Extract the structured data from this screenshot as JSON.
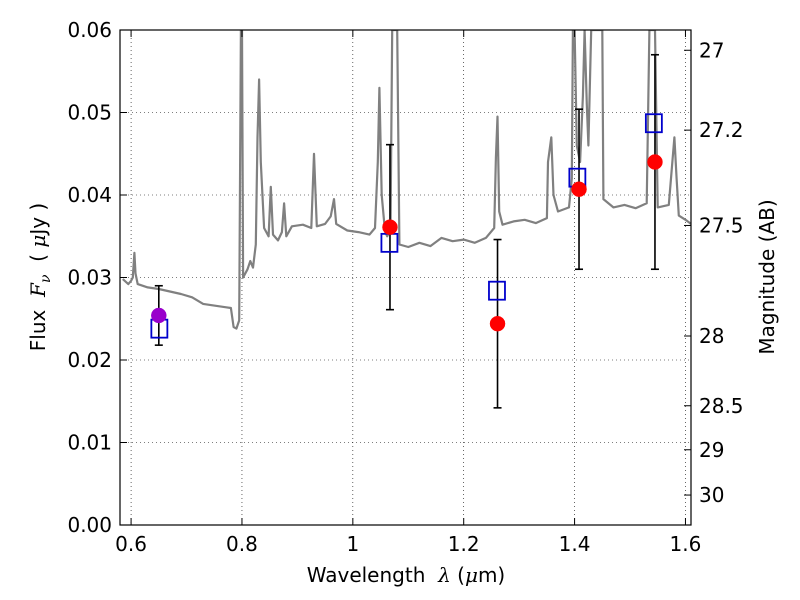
{
  "chart_data": {
    "type": "scatter",
    "xlabel": {
      "prefix": "Wavelength  ",
      "symbol": "λ",
      "paren_open": " (",
      "unit_sym": "μ",
      "unit_rest": "m)"
    },
    "ylabel": {
      "prefix": "Flux  ",
      "symbol": "F",
      "sub": "ν",
      "unit_open": "  ( ",
      "unit_sym": "μ",
      "unit_rest": "Jy )"
    },
    "y2label": "Magnitude (AB)",
    "xlim": [
      0.58,
      1.61
    ],
    "ylim": [
      0.0,
      0.06
    ],
    "x_ticks": [
      {
        "value": 0.6,
        "label": "0.6"
      },
      {
        "value": 0.8,
        "label": "0.8"
      },
      {
        "value": 1.0,
        "label": "1"
      },
      {
        "value": 1.2,
        "label": "1.2"
      },
      {
        "value": 1.4,
        "label": "1.4"
      },
      {
        "value": 1.6,
        "label": "1.6"
      }
    ],
    "y_ticks": [
      {
        "value": 0.0,
        "label": "0.00"
      },
      {
        "value": 0.01,
        "label": "0.01"
      },
      {
        "value": 0.02,
        "label": "0.02"
      },
      {
        "value": 0.03,
        "label": "0.03"
      },
      {
        "value": 0.04,
        "label": "0.04"
      },
      {
        "value": 0.05,
        "label": "0.05"
      },
      {
        "value": 0.06,
        "label": "0.06"
      }
    ],
    "y2_ticks": [
      {
        "value": 27.0,
        "label": "27"
      },
      {
        "value": 27.2,
        "label": "27.2"
      },
      {
        "value": 27.5,
        "label": "27.5"
      },
      {
        "value": 28.0,
        "label": "28"
      },
      {
        "value": 28.5,
        "label": "28.5"
      },
      {
        "value": 29.0,
        "label": "29"
      },
      {
        "value": 30.0,
        "label": "30"
      }
    ],
    "grid": true,
    "colors": {
      "spectrum": "#808080",
      "observed": "#ff0000",
      "observed_first": "#9900cc",
      "model": "#0000cc",
      "errorbar": "#000000"
    },
    "spectrum": [
      [
        0.585,
        0.0298
      ],
      [
        0.595,
        0.0292
      ],
      [
        0.6,
        0.0296
      ],
      [
        0.603,
        0.03
      ],
      [
        0.606,
        0.033
      ],
      [
        0.608,
        0.0305
      ],
      [
        0.612,
        0.0292
      ],
      [
        0.63,
        0.0288
      ],
      [
        0.65,
        0.0286
      ],
      [
        0.67,
        0.0283
      ],
      [
        0.69,
        0.028
      ],
      [
        0.71,
        0.0276
      ],
      [
        0.73,
        0.0268
      ],
      [
        0.75,
        0.0266
      ],
      [
        0.77,
        0.0264
      ],
      [
        0.78,
        0.0263
      ],
      [
        0.785,
        0.024
      ],
      [
        0.79,
        0.0238
      ],
      [
        0.795,
        0.0248
      ],
      [
        0.798,
        0.06
      ],
      [
        0.8,
        0.06
      ],
      [
        0.802,
        0.03
      ],
      [
        0.81,
        0.031
      ],
      [
        0.815,
        0.032
      ],
      [
        0.82,
        0.0312
      ],
      [
        0.825,
        0.034
      ],
      [
        0.828,
        0.047
      ],
      [
        0.831,
        0.054
      ],
      [
        0.834,
        0.044
      ],
      [
        0.84,
        0.036
      ],
      [
        0.848,
        0.035
      ],
      [
        0.852,
        0.041
      ],
      [
        0.856,
        0.0352
      ],
      [
        0.865,
        0.0345
      ],
      [
        0.872,
        0.0355
      ],
      [
        0.876,
        0.039
      ],
      [
        0.88,
        0.035
      ],
      [
        0.89,
        0.0362
      ],
      [
        0.91,
        0.0364
      ],
      [
        0.925,
        0.036
      ],
      [
        0.93,
        0.045
      ],
      [
        0.935,
        0.0362
      ],
      [
        0.95,
        0.0365
      ],
      [
        0.96,
        0.0374
      ],
      [
        0.966,
        0.0395
      ],
      [
        0.97,
        0.0365
      ],
      [
        0.99,
        0.0357
      ],
      [
        1.01,
        0.0355
      ],
      [
        1.03,
        0.0352
      ],
      [
        1.04,
        0.036
      ],
      [
        1.045,
        0.044
      ],
      [
        1.048,
        0.053
      ],
      [
        1.052,
        0.04
      ],
      [
        1.058,
        0.0356
      ],
      [
        1.062,
        0.035
      ],
      [
        1.068,
        0.0358
      ],
      [
        1.071,
        0.06
      ],
      [
        1.08,
        0.06
      ],
      [
        1.084,
        0.034
      ],
      [
        1.1,
        0.0337
      ],
      [
        1.12,
        0.0342
      ],
      [
        1.14,
        0.0338
      ],
      [
        1.16,
        0.0348
      ],
      [
        1.18,
        0.0344
      ],
      [
        1.2,
        0.0346
      ],
      [
        1.22,
        0.0342
      ],
      [
        1.24,
        0.0348
      ],
      [
        1.255,
        0.036
      ],
      [
        1.258,
        0.0445
      ],
      [
        1.261,
        0.0495
      ],
      [
        1.264,
        0.038
      ],
      [
        1.27,
        0.0364
      ],
      [
        1.29,
        0.0368
      ],
      [
        1.31,
        0.037
      ],
      [
        1.33,
        0.0366
      ],
      [
        1.35,
        0.0372
      ],
      [
        1.352,
        0.044
      ],
      [
        1.358,
        0.047
      ],
      [
        1.362,
        0.04
      ],
      [
        1.37,
        0.038
      ],
      [
        1.39,
        0.0385
      ],
      [
        1.395,
        0.042
      ],
      [
        1.397,
        0.06
      ],
      [
        1.4,
        0.06
      ],
      [
        1.404,
        0.046
      ],
      [
        1.41,
        0.044
      ],
      [
        1.415,
        0.052
      ],
      [
        1.418,
        0.06
      ],
      [
        1.422,
        0.051
      ],
      [
        1.425,
        0.046
      ],
      [
        1.43,
        0.06
      ],
      [
        1.45,
        0.06
      ],
      [
        1.452,
        0.0395
      ],
      [
        1.47,
        0.0385
      ],
      [
        1.49,
        0.0388
      ],
      [
        1.51,
        0.0384
      ],
      [
        1.53,
        0.039
      ],
      [
        1.535,
        0.06
      ],
      [
        1.545,
        0.06
      ],
      [
        1.55,
        0.0385
      ],
      [
        1.57,
        0.0388
      ],
      [
        1.58,
        0.047
      ],
      [
        1.584,
        0.042
      ],
      [
        1.588,
        0.0375
      ],
      [
        1.6,
        0.037
      ],
      [
        1.61,
        0.0365
      ]
    ],
    "observed": [
      {
        "x": 0.65,
        "y": 0.0254,
        "err_low": 0.0036,
        "err_high": 0.0036
      },
      {
        "x": 1.067,
        "y": 0.0361,
        "err_low": 0.01,
        "err_high": 0.01
      },
      {
        "x": 1.261,
        "y": 0.0244,
        "err_low": 0.0102,
        "err_high": 0.0102
      },
      {
        "x": 1.408,
        "y": 0.0407,
        "err_low": 0.0097,
        "err_high": 0.0097
      },
      {
        "x": 1.545,
        "y": 0.044,
        "err_low": 0.013,
        "err_high": 0.013
      }
    ],
    "model": [
      {
        "x": 0.651,
        "y": 0.0238
      },
      {
        "x": 1.066,
        "y": 0.0342
      },
      {
        "x": 1.26,
        "y": 0.0284
      },
      {
        "x": 1.405,
        "y": 0.0421
      },
      {
        "x": 1.543,
        "y": 0.0487
      }
    ]
  }
}
